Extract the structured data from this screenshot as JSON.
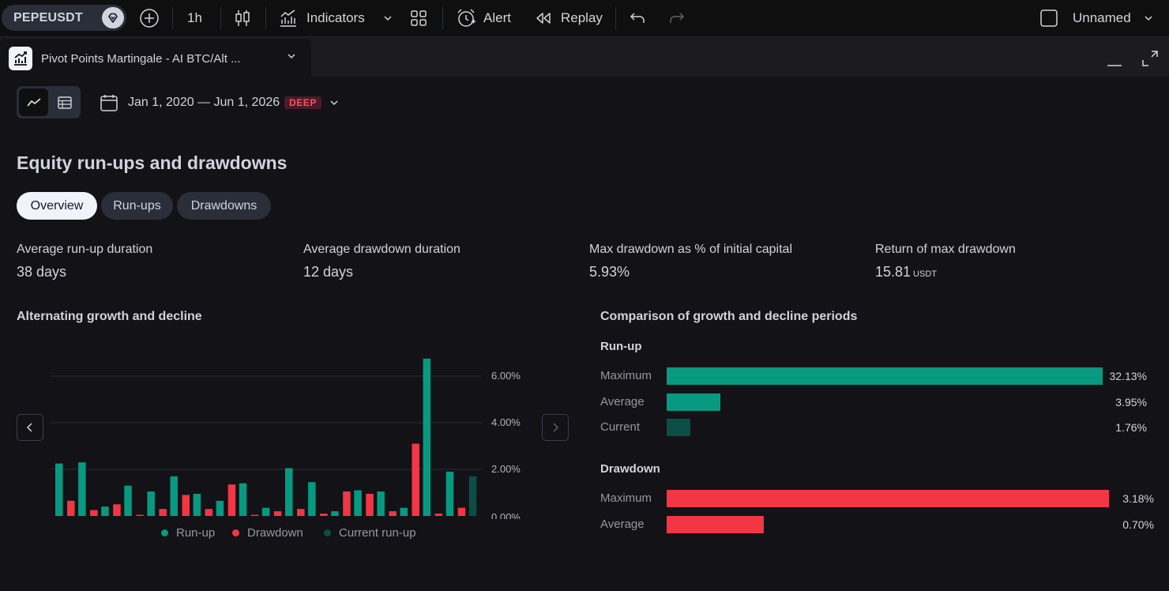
{
  "toolbar": {
    "symbol": "PEPEUSDT",
    "interval": "1h",
    "indicators": "Indicators",
    "alert": "Alert",
    "replay": "Replay",
    "layout_name": "Unnamed"
  },
  "tab": {
    "title": "Pivot Points Martingale - AI BTC/Alt ..."
  },
  "range": {
    "label": "Jan 1, 2020 — Jun 1, 2026",
    "badge": "DEEP"
  },
  "section_title": "Equity run-ups and drawdowns",
  "segments": [
    "Overview",
    "Run-ups",
    "Drawdowns"
  ],
  "stats": [
    {
      "label": "Average run-up duration",
      "value": "38 days",
      "unit": ""
    },
    {
      "label": "Average drawdown duration",
      "value": "12 days",
      "unit": ""
    },
    {
      "label": "Max drawdown as % of initial capital",
      "value": "5.93%",
      "unit": ""
    },
    {
      "label": "Return of max drawdown",
      "value": "15.81",
      "unit": "USDT"
    }
  ],
  "colors": {
    "runup": "#089981",
    "drawdown": "#f23645",
    "current_runup": "#0a4e45",
    "grid": "#2a2e39"
  },
  "chart_data": [
    {
      "type": "bar",
      "title": "Alternating growth and decline",
      "yticks": [
        "0.00%",
        "2.00%",
        "4.00%",
        "6.00%"
      ],
      "ylim": [
        0,
        7
      ],
      "grid": true,
      "legend_position": "bottom",
      "legend": [
        "Run-up",
        "Drawdown",
        "Current run-up"
      ],
      "pairs": [
        {
          "runup": 2.25,
          "drawdown": 0.65
        },
        {
          "runup": 2.3,
          "drawdown": 0.25
        },
        {
          "runup": 0.4,
          "drawdown": 0.5
        },
        {
          "runup": 1.3,
          "drawdown": 0.05
        },
        {
          "runup": 1.05,
          "drawdown": 0.3
        },
        {
          "runup": 1.7,
          "drawdown": 0.9
        },
        {
          "runup": 0.95,
          "drawdown": 0.3
        },
        {
          "runup": 0.65,
          "drawdown": 1.35
        },
        {
          "runup": 1.4,
          "drawdown": 0.05
        },
        {
          "runup": 0.35,
          "drawdown": 0.2
        },
        {
          "runup": 2.05,
          "drawdown": 0.3
        },
        {
          "runup": 1.45,
          "drawdown": 0.1
        },
        {
          "runup": 0.2,
          "drawdown": 1.05
        },
        {
          "runup": 1.1,
          "drawdown": 0.95
        },
        {
          "runup": 1.05,
          "drawdown": 0.2
        },
        {
          "runup": 0.35,
          "drawdown": 3.1
        },
        {
          "runup": 6.75,
          "drawdown": 0.1
        },
        {
          "runup": 1.9,
          "drawdown": 0.35
        }
      ],
      "current_runup": 1.7
    },
    {
      "type": "bar",
      "orientation": "horizontal",
      "title": "Comparison of growth and decline periods",
      "groups": [
        {
          "name": "Run-up",
          "rows": [
            {
              "label": "Maximum",
              "value": 32.13,
              "display": "32.13%"
            },
            {
              "label": "Average",
              "value": 3.95,
              "display": "3.95%"
            },
            {
              "label": "Current",
              "value": 1.76,
              "display": "1.76%"
            }
          ]
        },
        {
          "name": "Drawdown",
          "rows": [
            {
              "label": "Maximum",
              "value": 3.18,
              "display": "3.18%"
            },
            {
              "label": "Average",
              "value": 0.7,
              "display": "0.70%"
            }
          ]
        }
      ]
    }
  ]
}
